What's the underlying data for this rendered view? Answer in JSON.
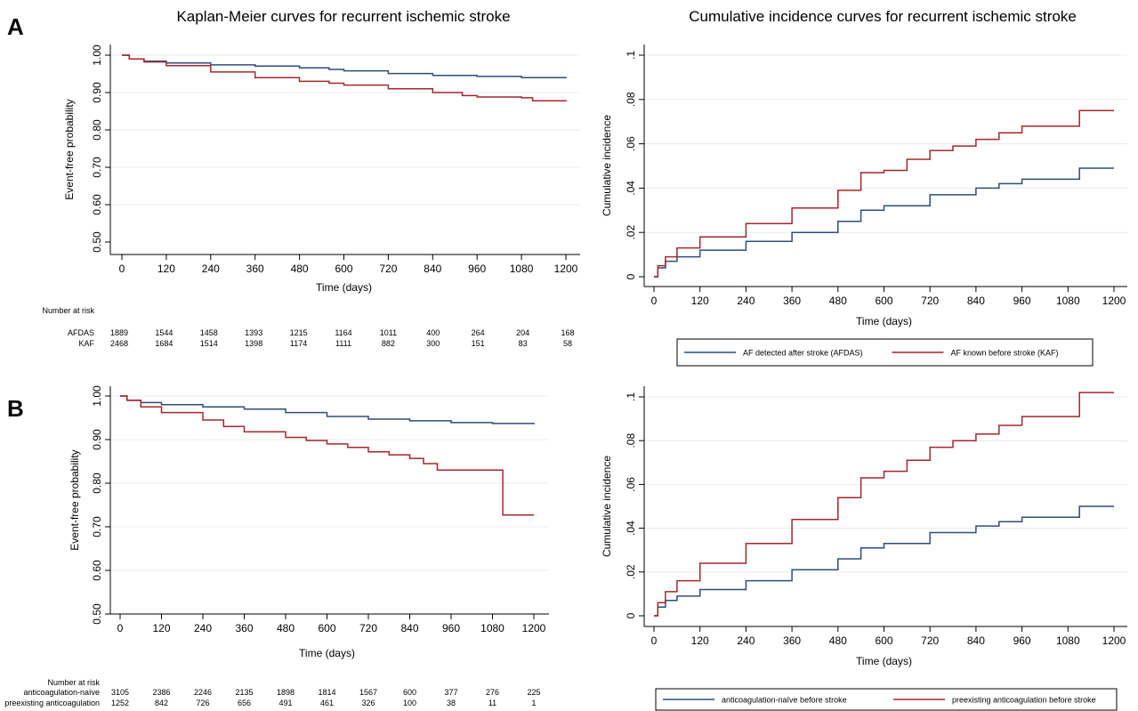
{
  "panel_letters": [
    "A",
    "B"
  ],
  "titles": {
    "km": "Kaplan-Meier curves for recurrent ischemic stroke",
    "ci": "Cumulative incidence curves for recurrent ischemic stroke"
  },
  "colors": {
    "blue": "#2e4d7a",
    "red": "#a3272f",
    "grid": "#e6ecef"
  },
  "chart_data": [
    {
      "type": "line",
      "panel": "A",
      "title": "Kaplan-Meier curves for recurrent ischemic stroke",
      "xlabel": "Time (days)",
      "ylabel": "Event-free probability",
      "xlim": [
        0,
        1200
      ],
      "ylim": [
        0.5,
        1.0
      ],
      "xticks": [
        0,
        120,
        240,
        360,
        480,
        600,
        720,
        840,
        960,
        1080,
        1200
      ],
      "xtick_labels": [
        "0",
        "120",
        "240",
        "360",
        "480",
        "600",
        "720",
        "840",
        "960",
        "1080",
        "1200"
      ],
      "yticks": [
        0.5,
        0.6,
        0.7,
        0.8,
        0.9,
        1.0
      ],
      "ytick_labels": [
        "0.50",
        "0.60",
        "0.70",
        "0.80",
        "0.90",
        "1.00"
      ],
      "grid": true,
      "series": [
        {
          "name": "AFDAS",
          "color": "#2e4d7a",
          "x": [
            0,
            20,
            60,
            120,
            240,
            360,
            480,
            560,
            600,
            720,
            840,
            960,
            1080,
            1200
          ],
          "y": [
            1.0,
            0.99,
            0.984,
            0.979,
            0.974,
            0.971,
            0.966,
            0.962,
            0.958,
            0.951,
            0.946,
            0.943,
            0.94,
            0.938
          ]
        },
        {
          "name": "KAF",
          "color": "#a3272f",
          "x": [
            0,
            20,
            60,
            120,
            240,
            360,
            480,
            560,
            600,
            720,
            840,
            920,
            960,
            1080,
            1110,
            1200
          ],
          "y": [
            1.0,
            0.99,
            0.982,
            0.972,
            0.955,
            0.94,
            0.93,
            0.925,
            0.92,
            0.91,
            0.9,
            0.892,
            0.888,
            0.886,
            0.878,
            0.876
          ]
        }
      ],
      "risk_table": {
        "header": "Number at risk",
        "rows": [
          {
            "label": "AFDAS",
            "values": [
              "1889",
              "1544",
              "1458",
              "1393",
              "1215",
              "1164",
              "1011",
              "400",
              "264",
              "204",
              "168"
            ]
          },
          {
            "label": "KAF",
            "values": [
              "2468",
              "1684",
              "1514",
              "1398",
              "1174",
              "1111",
              "882",
              "300",
              "151",
              "83",
              "58"
            ]
          }
        ]
      }
    },
    {
      "type": "line",
      "panel": "A",
      "title": "Cumulative incidence curves for recurrent ischemic stroke",
      "xlabel": "Time (days)",
      "ylabel": "Cumulative incidence",
      "xlim": [
        0,
        1200
      ],
      "ylim": [
        0,
        0.1
      ],
      "xticks": [
        0,
        120,
        240,
        360,
        480,
        600,
        720,
        840,
        960,
        1080,
        1200
      ],
      "xtick_labels": [
        "0",
        "120",
        "240",
        "360",
        "480",
        "600",
        "720",
        "840",
        "960",
        "1080",
        "1200"
      ],
      "yticks": [
        0,
        0.02,
        0.04,
        0.06,
        0.08,
        0.1
      ],
      "ytick_labels": [
        "0",
        ".02",
        ".04",
        ".06",
        ".08",
        ".1"
      ],
      "grid": true,
      "series": [
        {
          "name": "AF detected after stroke (AFDAS)",
          "color": "#2e4d7a",
          "x": [
            0,
            10,
            30,
            60,
            120,
            240,
            360,
            480,
            540,
            600,
            720,
            840,
            900,
            960,
            1080,
            1110,
            1200
          ],
          "y": [
            0.0,
            0.004,
            0.007,
            0.009,
            0.012,
            0.016,
            0.02,
            0.025,
            0.03,
            0.032,
            0.037,
            0.04,
            0.042,
            0.044,
            0.044,
            0.049,
            0.049
          ]
        },
        {
          "name": "AF known before stroke (KAF)",
          "color": "#a3272f",
          "x": [
            0,
            10,
            30,
            60,
            120,
            240,
            360,
            480,
            540,
            600,
            660,
            720,
            780,
            840,
            900,
            960,
            1080,
            1110,
            1200
          ],
          "y": [
            0.0,
            0.005,
            0.009,
            0.013,
            0.018,
            0.024,
            0.031,
            0.039,
            0.047,
            0.048,
            0.053,
            0.057,
            0.059,
            0.062,
            0.065,
            0.068,
            0.068,
            0.075,
            0.075
          ]
        }
      ],
      "legend": {
        "placement": "bottom",
        "items": [
          "AF detected after stroke (AFDAS)",
          "AF known before stroke (KAF)"
        ]
      }
    },
    {
      "type": "line",
      "panel": "B",
      "title": "",
      "xlabel": "Time (days)",
      "ylabel": "Event-free probability",
      "xlim": [
        0,
        1200
      ],
      "ylim": [
        0.5,
        1.0
      ],
      "xticks": [
        0,
        120,
        240,
        360,
        480,
        600,
        720,
        840,
        960,
        1080,
        1200
      ],
      "xtick_labels": [
        "0",
        "120",
        "240",
        "360",
        "480",
        "600",
        "720",
        "840",
        "960",
        "1080",
        "1200"
      ],
      "yticks": [
        0.5,
        0.6,
        0.7,
        0.8,
        0.9,
        1.0
      ],
      "ytick_labels": [
        "0.50",
        "0.60",
        "0.70",
        "0.80",
        "0.90",
        "1.00"
      ],
      "grid": true,
      "series": [
        {
          "name": "anticoagulation-naïve before stroke",
          "color": "#2e4d7a",
          "x": [
            0,
            20,
            60,
            120,
            240,
            360,
            480,
            600,
            720,
            840,
            960,
            1080,
            1200
          ],
          "y": [
            1.0,
            0.99,
            0.985,
            0.98,
            0.975,
            0.97,
            0.962,
            0.953,
            0.947,
            0.943,
            0.939,
            0.937,
            0.935
          ]
        },
        {
          "name": "preexisting anticoagulation before stroke",
          "color": "#a3272f",
          "x": [
            0,
            20,
            60,
            120,
            240,
            300,
            360,
            480,
            540,
            600,
            660,
            720,
            780,
            840,
            880,
            920,
            960,
            1080,
            1110,
            1200
          ],
          "y": [
            1.0,
            0.99,
            0.975,
            0.962,
            0.945,
            0.93,
            0.918,
            0.905,
            0.898,
            0.89,
            0.882,
            0.872,
            0.865,
            0.857,
            0.845,
            0.83,
            0.83,
            0.83,
            0.727,
            0.727
          ]
        }
      ],
      "risk_table": {
        "header": "Number at risk",
        "rows": [
          {
            "label": "anticoagulation-naïve",
            "values": [
              "3105",
              "2386",
              "2246",
              "2135",
              "1898",
              "1814",
              "1567",
              "600",
              "377",
              "276",
              "225"
            ]
          },
          {
            "label": "preexisting anticoagulation",
            "values": [
              "1252",
              "842",
              "726",
              "656",
              "491",
              "461",
              "326",
              "100",
              "38",
              "11",
              "1"
            ]
          }
        ]
      }
    },
    {
      "type": "line",
      "panel": "B",
      "title": "",
      "xlabel": "Time (days)",
      "ylabel": "Cumulative incidence",
      "xlim": [
        0,
        1200
      ],
      "ylim": [
        0,
        0.1
      ],
      "xticks": [
        0,
        120,
        240,
        360,
        480,
        600,
        720,
        840,
        960,
        1080,
        1200
      ],
      "xtick_labels": [
        "0",
        "120",
        "240",
        "360",
        "480",
        "600",
        "720",
        "840",
        "960",
        "1080",
        "1200"
      ],
      "yticks": [
        0,
        0.02,
        0.04,
        0.06,
        0.08,
        0.1
      ],
      "ytick_labels": [
        "0",
        ".02",
        ".04",
        ".06",
        ".08",
        ".1"
      ],
      "grid": true,
      "series": [
        {
          "name": "anticoagulation-naïve before stroke",
          "color": "#2e4d7a",
          "x": [
            0,
            10,
            30,
            60,
            120,
            240,
            360,
            480,
            540,
            600,
            720,
            840,
            900,
            960,
            1080,
            1110,
            1200
          ],
          "y": [
            0.0,
            0.004,
            0.007,
            0.009,
            0.012,
            0.016,
            0.021,
            0.026,
            0.031,
            0.033,
            0.038,
            0.041,
            0.043,
            0.045,
            0.045,
            0.05,
            0.05
          ]
        },
        {
          "name": "preexisting anticoagulation before stroke",
          "color": "#a3272f",
          "x": [
            0,
            10,
            30,
            60,
            120,
            240,
            360,
            480,
            540,
            600,
            660,
            720,
            780,
            840,
            900,
            960,
            1080,
            1110,
            1200
          ],
          "y": [
            0.0,
            0.006,
            0.011,
            0.016,
            0.024,
            0.033,
            0.044,
            0.054,
            0.063,
            0.066,
            0.071,
            0.077,
            0.08,
            0.083,
            0.087,
            0.091,
            0.091,
            0.102,
            0.102
          ]
        }
      ],
      "legend": {
        "placement": "bottom",
        "items": [
          "anticoagulation-naïve before stroke",
          "preexisting anticoagulation before stroke"
        ]
      }
    }
  ]
}
